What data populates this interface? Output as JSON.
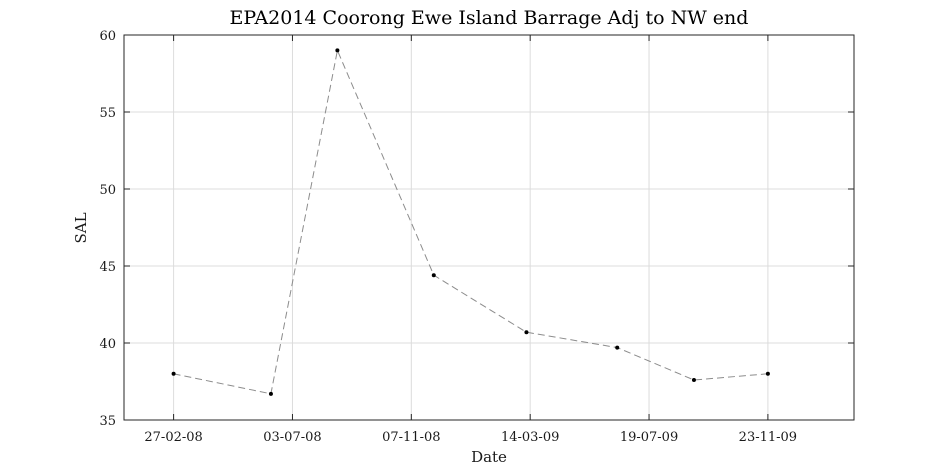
{
  "chart_data": {
    "type": "line",
    "title": "EPA2014 Coorong Ewe Island Barrage Adj to NW end",
    "xlabel": "Date",
    "ylabel": "SAL",
    "ylim": [
      35,
      60
    ],
    "yticks": [
      35,
      40,
      45,
      50,
      55,
      60
    ],
    "xlim": [
      "2008-01-05",
      "2010-02-23"
    ],
    "xticks": [
      {
        "value": "2008-02-27",
        "label": "27-02-08"
      },
      {
        "value": "2008-07-03",
        "label": "03-07-08"
      },
      {
        "value": "2008-11-07",
        "label": "07-11-08"
      },
      {
        "value": "2009-03-14",
        "label": "14-03-09"
      },
      {
        "value": "2009-07-19",
        "label": "19-07-09"
      },
      {
        "value": "2009-11-23",
        "label": "23-11-09"
      }
    ],
    "grid": true,
    "series": [
      {
        "color": "#8c8c8c",
        "line_style": "dashed",
        "marker_color": "#000000",
        "points": [
          {
            "x": "2008-02-27",
            "y": 38.0
          },
          {
            "x": "2008-06-10",
            "y": 36.7
          },
          {
            "x": "2008-08-20",
            "y": 59.0
          },
          {
            "x": "2008-12-01",
            "y": 44.4
          },
          {
            "x": "2009-03-10",
            "y": 40.7
          },
          {
            "x": "2009-06-15",
            "y": 39.7
          },
          {
            "x": "2009-09-05",
            "y": 37.6
          },
          {
            "x": "2009-11-23",
            "y": 38.0
          }
        ]
      }
    ]
  }
}
